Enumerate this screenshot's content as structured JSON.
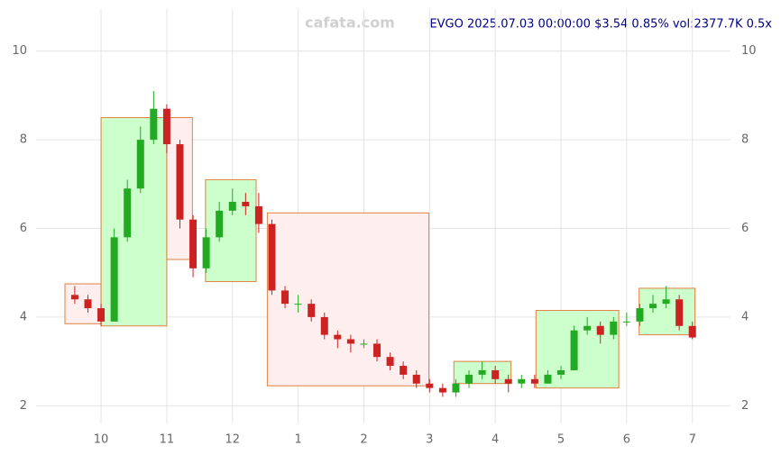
{
  "chart_data": {
    "type": "candlestick",
    "title": "EVGO 2025.07.03 00:00:00 $3.54 0.85% vol:2377.7K 0.5x",
    "watermark": "cafata.com",
    "x": [
      9.6,
      9.8,
      10.0,
      10.2,
      10.4,
      10.6,
      10.8,
      11.0,
      11.2,
      11.4,
      11.6,
      11.8,
      12.0,
      12.2,
      12.4,
      12.6,
      12.8,
      13.0,
      13.2,
      13.4,
      13.6,
      13.8,
      14.0,
      14.2,
      14.4,
      14.6,
      14.8,
      15.0,
      15.2,
      15.4,
      15.6,
      15.8,
      16.0,
      16.2,
      16.4,
      16.6,
      16.8,
      17.0,
      17.2,
      17.4,
      17.6,
      17.8,
      18.0,
      18.2,
      18.4,
      18.6,
      18.8,
      19.0
    ],
    "open": [
      4.5,
      4.4,
      4.2,
      3.9,
      5.8,
      6.9,
      8.0,
      8.7,
      7.9,
      6.2,
      5.1,
      5.8,
      6.4,
      6.6,
      6.5,
      6.1,
      4.6,
      4.3,
      4.3,
      4.0,
      3.6,
      3.5,
      3.4,
      3.4,
      3.1,
      2.9,
      2.7,
      2.5,
      2.4,
      2.3,
      2.5,
      2.7,
      2.8,
      2.6,
      2.5,
      2.6,
      2.5,
      2.7,
      2.8,
      3.7,
      3.8,
      3.6,
      3.9,
      3.9,
      4.2,
      4.3,
      4.4,
      3.8
    ],
    "high": [
      4.7,
      4.5,
      4.3,
      6.0,
      7.1,
      8.3,
      9.1,
      8.8,
      8.0,
      6.3,
      6.0,
      6.6,
      6.9,
      6.8,
      6.8,
      6.2,
      4.7,
      4.5,
      4.4,
      4.1,
      3.7,
      3.6,
      3.5,
      3.5,
      3.2,
      3.0,
      2.8,
      2.6,
      2.5,
      2.6,
      2.8,
      3.0,
      2.9,
      2.7,
      2.7,
      2.7,
      2.8,
      2.9,
      3.8,
      4.0,
      3.9,
      4.0,
      4.1,
      4.3,
      4.5,
      4.7,
      4.5,
      3.9
    ],
    "low": [
      4.3,
      4.1,
      3.8,
      3.9,
      5.7,
      6.8,
      7.9,
      7.7,
      6.0,
      4.9,
      5.0,
      5.7,
      6.3,
      6.3,
      5.9,
      4.5,
      4.2,
      4.1,
      3.9,
      3.5,
      3.3,
      3.2,
      3.3,
      3.0,
      2.8,
      2.6,
      2.4,
      2.3,
      2.2,
      2.2,
      2.4,
      2.6,
      2.5,
      2.3,
      2.4,
      2.4,
      2.5,
      2.6,
      2.8,
      3.6,
      3.4,
      3.5,
      3.8,
      3.8,
      4.1,
      4.2,
      3.7,
      3.5
    ],
    "close": [
      4.4,
      4.2,
      3.9,
      5.8,
      6.9,
      8.0,
      8.7,
      7.9,
      6.2,
      5.1,
      5.8,
      6.4,
      6.6,
      6.5,
      6.1,
      4.6,
      4.3,
      4.3,
      4.0,
      3.6,
      3.5,
      3.4,
      3.4,
      3.1,
      2.9,
      2.7,
      2.5,
      2.4,
      2.3,
      2.5,
      2.7,
      2.8,
      2.6,
      2.5,
      2.6,
      2.5,
      2.7,
      2.8,
      3.7,
      3.8,
      3.6,
      3.9,
      3.9,
      4.2,
      4.3,
      4.4,
      3.8,
      3.54
    ],
    "up_color": "#22aa22",
    "down_color": "#cc2222",
    "boxes": [
      {
        "x": [
          9.45,
          10.0
        ],
        "y": [
          3.85,
          4.75
        ],
        "color": "#ffeeee"
      },
      {
        "x": [
          10.0,
          11.0
        ],
        "y": [
          3.8,
          8.5
        ],
        "color": "#ccffcc"
      },
      {
        "x": [
          11.0,
          11.39
        ],
        "y": [
          5.3,
          8.5
        ],
        "color": "#ffeeee"
      },
      {
        "x": [
          11.59,
          12.36
        ],
        "y": [
          4.8,
          7.1
        ],
        "color": "#ccffcc"
      },
      {
        "x": [
          12.53,
          14.99
        ],
        "y": [
          2.45,
          6.35
        ],
        "color": "#ffeeee"
      },
      {
        "x": [
          15.37,
          16.24
        ],
        "y": [
          2.5,
          3.0
        ],
        "color": "#ccffcc"
      },
      {
        "x": [
          16.62,
          17.88
        ],
        "y": [
          2.4,
          4.15
        ],
        "color": "#ccffcc"
      },
      {
        "x": [
          18.19,
          19.04
        ],
        "y": [
          3.6,
          4.65
        ],
        "color": "#ccffcc"
      }
    ],
    "xlim": [
      9.45,
      19.1
    ],
    "xticks": [
      {
        "value": 10,
        "label": "10"
      },
      {
        "value": 11,
        "label": "11"
      },
      {
        "value": 12,
        "label": "12"
      },
      {
        "value": 13,
        "label": "1"
      },
      {
        "value": 14,
        "label": "2"
      },
      {
        "value": 15,
        "label": "3"
      },
      {
        "value": 16,
        "label": "4"
      },
      {
        "value": 17,
        "label": "5"
      },
      {
        "value": 18,
        "label": "6"
      },
      {
        "value": 19,
        "label": "7"
      }
    ],
    "ylim": [
      1.6,
      10.95
    ],
    "yticks": [
      2,
      4,
      6,
      8,
      10
    ],
    "grid": true
  }
}
